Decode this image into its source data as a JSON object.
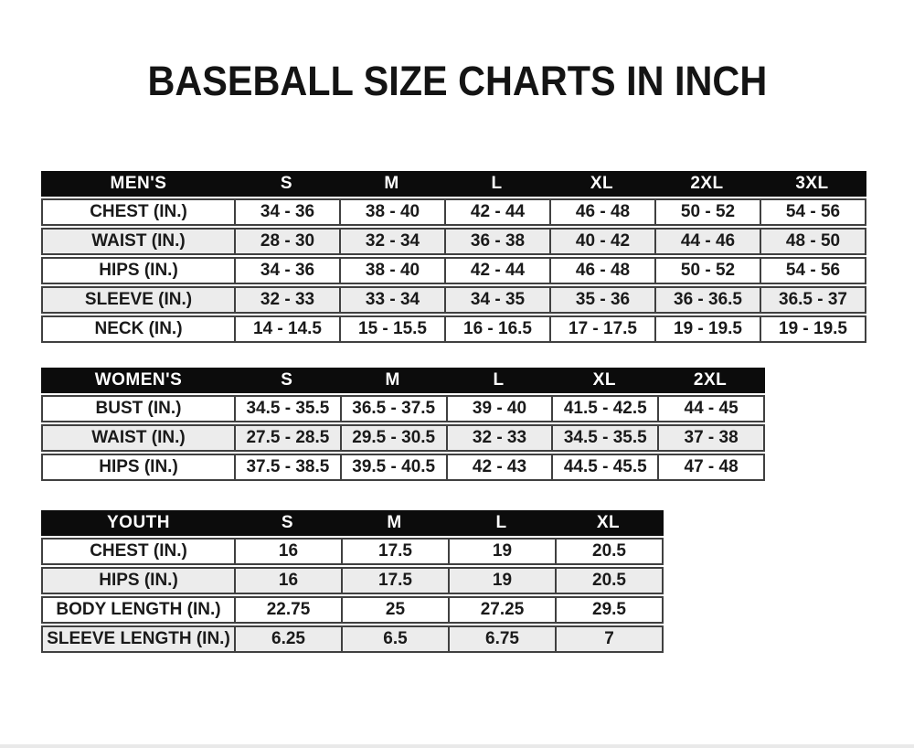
{
  "page": {
    "title": "BASEBALL SIZE CHARTS IN INCH"
  },
  "colors": {
    "background": "#ffffff",
    "header_bg": "#0c0c0c",
    "header_text": "#ffffff",
    "row_alt_bg": "#ececec",
    "border": "#404040",
    "text": "#1a1a1a"
  },
  "tables": {
    "mens": {
      "name": "MEN'S",
      "sizes": [
        "S",
        "M",
        "L",
        "XL",
        "2XL",
        "3XL"
      ],
      "rows": [
        {
          "label": "CHEST (IN.)",
          "values": [
            "34 - 36",
            "38 - 40",
            "42 - 44",
            "46 - 48",
            "50 - 52",
            "54 - 56"
          ]
        },
        {
          "label": "WAIST (IN.)",
          "values": [
            "28 - 30",
            "32 - 34",
            "36 - 38",
            "40 - 42",
            "44 - 46",
            "48 - 50"
          ]
        },
        {
          "label": "HIPS (IN.)",
          "values": [
            "34 - 36",
            "38 - 40",
            "42 - 44",
            "46 - 48",
            "50 - 52",
            "54 - 56"
          ]
        },
        {
          "label": "SLEEVE (IN.)",
          "values": [
            "32 - 33",
            "33 - 34",
            "34 - 35",
            "35 - 36",
            "36 - 36.5",
            "36.5 - 37"
          ]
        },
        {
          "label": "NECK (IN.)",
          "values": [
            "14 - 14.5",
            "15 - 15.5",
            "16 - 16.5",
            "17 - 17.5",
            "19 - 19.5",
            "19 - 19.5"
          ]
        }
      ]
    },
    "womens": {
      "name": "WOMEN'S",
      "sizes": [
        "S",
        "M",
        "L",
        "XL",
        "2XL"
      ],
      "rows": [
        {
          "label": "BUST (IN.)",
          "values": [
            "34.5 - 35.5",
            "36.5 - 37.5",
            "39 - 40",
            "41.5 - 42.5",
            "44 - 45"
          ]
        },
        {
          "label": "WAIST (IN.)",
          "values": [
            "27.5 - 28.5",
            "29.5 - 30.5",
            "32 - 33",
            "34.5 - 35.5",
            "37 - 38"
          ]
        },
        {
          "label": "HIPS (IN.)",
          "values": [
            "37.5 - 38.5",
            "39.5 - 40.5",
            "42 - 43",
            "44.5 - 45.5",
            "47 - 48"
          ]
        }
      ]
    },
    "youth": {
      "name": "YOUTH",
      "sizes": [
        "S",
        "M",
        "L",
        "XL"
      ],
      "rows": [
        {
          "label": "CHEST (IN.)",
          "values": [
            "16",
            "17.5",
            "19",
            "20.5"
          ]
        },
        {
          "label": "HIPS (IN.)",
          "values": [
            "16",
            "17.5",
            "19",
            "20.5"
          ]
        },
        {
          "label": "BODY LENGTH (IN.)",
          "values": [
            "22.75",
            "25",
            "27.25",
            "29.5"
          ]
        },
        {
          "label": "SLEEVE LENGTH (IN.)",
          "values": [
            "6.25",
            "6.5",
            "6.75",
            "7"
          ]
        }
      ]
    }
  }
}
